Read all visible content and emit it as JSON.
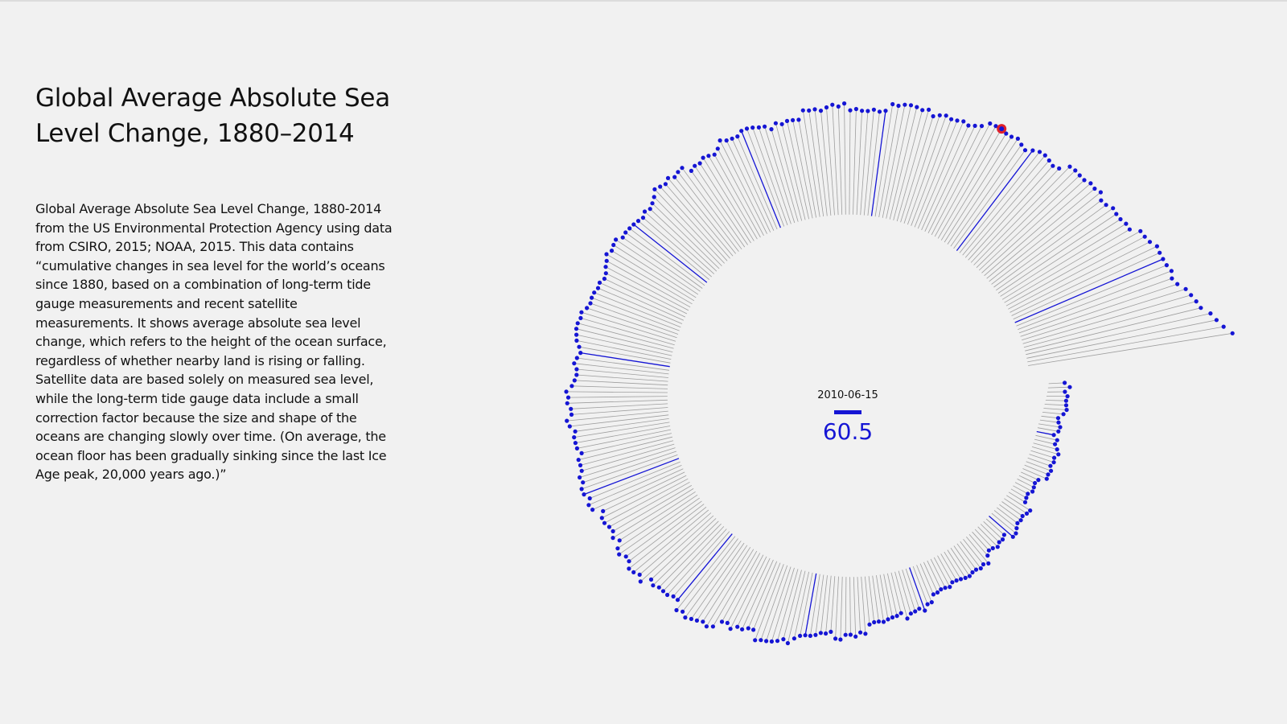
{
  "page": {
    "title": "Global Average Absolute Sea Level Change, 1880–2014",
    "description": "Global Average Absolute Sea Level Change, 1880-2014 from the US Environmental Protection Agency using data from CSIRO, 2015; NOAA, 2015. This data contains “cumulative changes in sea level for the world’s oceans since 1880, based on a combination of long-term tide gauge measurements and recent satellite measurements. It shows average absolute sea level change, which refers to the height of the ocean surface, regardless of whether nearby land is rising or falling. Satellite data are based solely on measured sea level, while the long-term tide gauge data include a small correction factor because the size and shape of the oceans are changing slowly over time. (On average, the ocean floor has been gradually sinking since the last Ice Age peak, 20,000 years ago.)”"
  },
  "chart_data": {
    "type": "radial-lollipop",
    "selected": {
      "date": "2010-06-15",
      "value": "60.5"
    },
    "colors": {
      "point": "#1515d4",
      "stem": "#9e9e9e",
      "stem_highlight": "#1515d4",
      "selected_ring": "#e0202a",
      "background": "#f1f1f1"
    }
  }
}
